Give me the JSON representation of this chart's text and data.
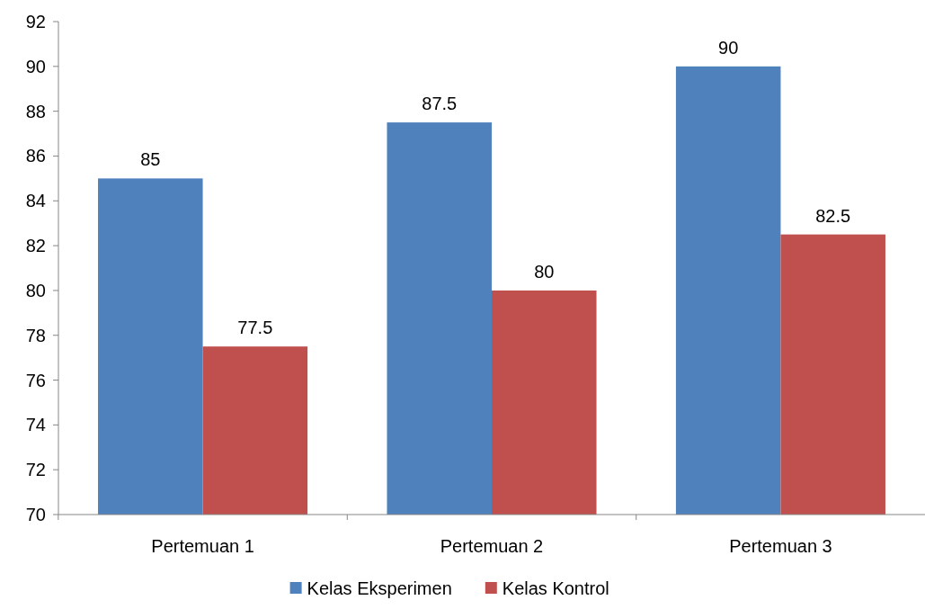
{
  "chart_data": {
    "type": "bar",
    "categories": [
      "Pertemuan 1",
      "Pertemuan 2",
      "Pertemuan 3"
    ],
    "series": [
      {
        "name": "Kelas Eksperimen",
        "color": "#4f81bd",
        "values": [
          85,
          87.5,
          90
        ]
      },
      {
        "name": "Kelas Kontrol",
        "color": "#c0504d",
        "values": [
          77.5,
          80,
          82.5
        ]
      }
    ],
    "ylim": [
      70,
      92
    ],
    "yticks": [
      70,
      72,
      74,
      76,
      78,
      80,
      82,
      84,
      86,
      88,
      90,
      92
    ],
    "data_labels": true,
    "legend": "bottom",
    "grid": false
  }
}
